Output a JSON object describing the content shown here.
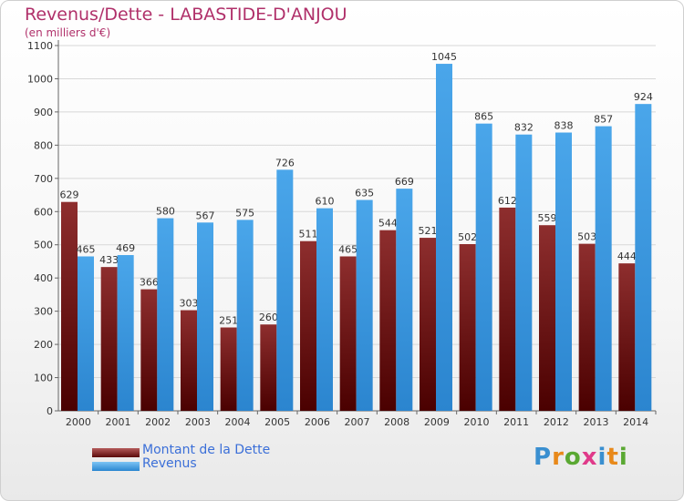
{
  "chart_data": {
    "type": "bar",
    "title": "Revenus/Dette - LABASTIDE-D'ANJOU",
    "subtitle": "(en milliers d'€)",
    "categories": [
      "2000",
      "2001",
      "2002",
      "2003",
      "2004",
      "2005",
      "2006",
      "2007",
      "2008",
      "2009",
      "2010",
      "2011",
      "2012",
      "2013",
      "2014"
    ],
    "series": [
      {
        "name": "Montant de la Dette",
        "color": "#8a2020",
        "values": [
          629,
          433,
          366,
          303,
          251,
          260,
          511,
          465,
          544,
          521,
          502,
          612,
          559,
          503,
          444
        ]
      },
      {
        "name": "Revenus",
        "color": "#3a9ae0",
        "values": [
          465,
          469,
          580,
          567,
          575,
          726,
          610,
          635,
          669,
          1045,
          865,
          832,
          838,
          857,
          924
        ]
      }
    ],
    "yticks": [
      0,
      100,
      200,
      300,
      400,
      500,
      600,
      700,
      800,
      900,
      1000,
      1100
    ],
    "ylim": [
      0,
      1100
    ],
    "grid": true,
    "legend_position": "bottom-left"
  },
  "brand": {
    "letters": [
      "P",
      "r",
      "o",
      "x",
      "i",
      "t",
      "i"
    ],
    "colors": [
      "#3a8fd0",
      "#e8891a",
      "#5aa832",
      "#e03a8a",
      "#3a8fd0",
      "#e8891a",
      "#5aa832"
    ]
  }
}
